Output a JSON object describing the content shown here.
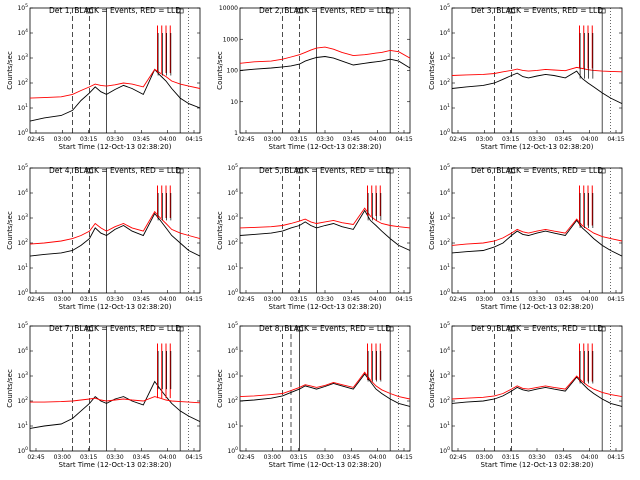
{
  "x_ticks": [
    "02:45",
    "03:00",
    "03:15",
    "03:30",
    "03:45",
    "04:00",
    "04:15"
  ],
  "x_range_min": [
    40,
    100
  ],
  "y_label": "Counts/sec",
  "x_label": "Start Time (12-Oct-13 02:38:20)",
  "colors": {
    "events": "#000000",
    "lld": "#ff0000",
    "axes": "#000000"
  },
  "chart_data": [
    {
      "type": "line",
      "title": "Det 1, BLACK = Events, RED = LLD",
      "yscale": "log",
      "ylim": [
        1,
        100000
      ],
      "yticks": [
        "10^0",
        "10^1",
        "10^2",
        "10^3",
        "10^4",
        "10^5"
      ],
      "markers": {
        "dashed": [
          55,
          61
        ],
        "solid": [
          67,
          93
        ],
        "dotted": [
          96
        ]
      },
      "spikes": [
        85,
        86.5,
        88,
        89.5
      ],
      "series": [
        {
          "name": "Events",
          "color": "#000000",
          "x": [
            40,
            45,
            51,
            55,
            58,
            61,
            63,
            65,
            67,
            70,
            73,
            76,
            80,
            84,
            86,
            88,
            90,
            93,
            96,
            100
          ],
          "values": [
            3,
            4,
            5,
            8,
            20,
            40,
            70,
            45,
            35,
            55,
            80,
            60,
            35,
            350,
            200,
            120,
            60,
            25,
            15,
            10
          ]
        },
        {
          "name": "LLD",
          "color": "#ff0000",
          "x": [
            40,
            45,
            51,
            55,
            58,
            61,
            63,
            65,
            67,
            70,
            73,
            76,
            80,
            84,
            86,
            88,
            90,
            93,
            96,
            100
          ],
          "values": [
            25,
            26,
            28,
            35,
            50,
            70,
            90,
            80,
            75,
            85,
            100,
            90,
            70,
            350,
            250,
            180,
            120,
            90,
            75,
            60
          ]
        }
      ]
    },
    {
      "type": "line",
      "title": "Det 2, BLACK = Events, RED = LLD",
      "yscale": "log",
      "ylim": [
        1,
        10000
      ],
      "yticks": [
        "1",
        "10",
        "100",
        "1000",
        "10000"
      ],
      "markers": {
        "dashed": [
          55,
          61
        ],
        "solid": [
          67,
          93
        ],
        "dotted": [
          96
        ]
      },
      "spikes": [],
      "series": [
        {
          "name": "Events",
          "color": "#000000",
          "x": [
            40,
            45,
            51,
            55,
            58,
            61,
            63,
            65,
            67,
            70,
            73,
            76,
            80,
            84,
            86,
            88,
            90,
            93,
            96,
            100
          ],
          "values": [
            100,
            110,
            120,
            130,
            140,
            160,
            200,
            230,
            260,
            280,
            250,
            200,
            150,
            170,
            180,
            190,
            200,
            230,
            200,
            120
          ]
        },
        {
          "name": "LLD",
          "color": "#ff0000",
          "x": [
            40,
            45,
            51,
            55,
            58,
            61,
            63,
            65,
            67,
            70,
            73,
            76,
            80,
            84,
            86,
            88,
            90,
            93,
            96,
            100
          ],
          "values": [
            170,
            190,
            200,
            230,
            270,
            320,
            380,
            450,
            520,
            560,
            480,
            380,
            300,
            320,
            340,
            360,
            380,
            440,
            400,
            250
          ]
        }
      ]
    },
    {
      "type": "line",
      "title": "Det 3, BLACK = Events, RED = LLD",
      "yscale": "log",
      "ylim": [
        1,
        100000
      ],
      "yticks": [
        "10^0",
        "10^1",
        "10^2",
        "10^3",
        "10^4",
        "10^5"
      ],
      "markers": {
        "dashed": [
          55,
          61
        ],
        "solid": [
          93
        ],
        "dotted": [
          96
        ]
      },
      "spikes": [
        85,
        86.5,
        88,
        89.5
      ],
      "series": [
        {
          "name": "Events",
          "color": "#000000",
          "x": [
            40,
            45,
            51,
            55,
            58,
            61,
            63,
            65,
            67,
            70,
            73,
            76,
            80,
            84,
            86,
            88,
            90,
            93,
            96,
            100
          ],
          "values": [
            60,
            70,
            80,
            100,
            140,
            200,
            250,
            180,
            160,
            190,
            220,
            200,
            160,
            300,
            150,
            100,
            70,
            40,
            25,
            15
          ]
        },
        {
          "name": "LLD",
          "color": "#ff0000",
          "x": [
            40,
            45,
            51,
            55,
            58,
            61,
            63,
            65,
            67,
            70,
            73,
            76,
            80,
            84,
            86,
            88,
            90,
            93,
            96,
            100
          ],
          "values": [
            200,
            210,
            220,
            240,
            280,
            320,
            360,
            320,
            300,
            320,
            350,
            330,
            310,
            420,
            380,
            340,
            320,
            300,
            290,
            280
          ]
        }
      ]
    },
    {
      "type": "line",
      "title": "Det 4, BLACK = Events, RED = LLD",
      "yscale": "log",
      "ylim": [
        1,
        100000
      ],
      "yticks": [
        "10^0",
        "10^1",
        "10^2",
        "10^3",
        "10^4",
        "10^5"
      ],
      "markers": {
        "dashed": [
          55,
          61
        ],
        "solid": [
          67,
          93
        ],
        "dotted": [
          96
        ]
      },
      "spikes": [
        85,
        86.5,
        88,
        89.5
      ],
      "series": [
        {
          "name": "Events",
          "color": "#000000",
          "x": [
            40,
            45,
            51,
            55,
            58,
            61,
            63,
            65,
            67,
            70,
            73,
            76,
            80,
            84,
            86,
            88,
            90,
            93,
            96,
            100
          ],
          "values": [
            30,
            35,
            40,
            50,
            80,
            150,
            400,
            250,
            200,
            350,
            500,
            300,
            200,
            1500,
            800,
            400,
            200,
            100,
            50,
            30
          ]
        },
        {
          "name": "LLD",
          "color": "#ff0000",
          "x": [
            40,
            45,
            51,
            55,
            58,
            61,
            63,
            65,
            67,
            70,
            73,
            76,
            80,
            84,
            86,
            88,
            90,
            93,
            96,
            100
          ],
          "values": [
            90,
            100,
            120,
            150,
            200,
            300,
            600,
            400,
            300,
            450,
            600,
            400,
            300,
            1800,
            1000,
            600,
            350,
            250,
            200,
            150
          ]
        }
      ]
    },
    {
      "type": "line",
      "title": "Det 5, BLACK = Events, RED = LLD",
      "yscale": "log",
      "ylim": [
        1,
        100000
      ],
      "yticks": [
        "10^0",
        "10^1",
        "10^2",
        "10^3",
        "10^4",
        "10^5"
      ],
      "markers": {
        "dashed": [
          55,
          61
        ],
        "solid": [
          67,
          93
        ],
        "dotted": [
          96
        ]
      },
      "spikes": [
        85,
        86.5,
        88,
        89.5
      ],
      "series": [
        {
          "name": "Events",
          "color": "#000000",
          "x": [
            40,
            45,
            51,
            55,
            58,
            61,
            63,
            65,
            67,
            70,
            73,
            76,
            80,
            84,
            86,
            88,
            90,
            93,
            96,
            100
          ],
          "values": [
            200,
            220,
            250,
            300,
            400,
            500,
            700,
            500,
            400,
            500,
            600,
            450,
            350,
            2000,
            800,
            500,
            300,
            150,
            80,
            50
          ]
        },
        {
          "name": "LLD",
          "color": "#ff0000",
          "x": [
            40,
            45,
            51,
            55,
            58,
            61,
            63,
            65,
            67,
            70,
            73,
            76,
            80,
            84,
            86,
            88,
            90,
            93,
            96,
            100
          ],
          "values": [
            400,
            420,
            450,
            500,
            600,
            750,
            900,
            700,
            600,
            700,
            800,
            650,
            550,
            2500,
            1200,
            800,
            600,
            500,
            450,
            400
          ]
        }
      ]
    },
    {
      "type": "line",
      "title": "Det 6, BLACK = Events, RED = LLD",
      "yscale": "log",
      "ylim": [
        1,
        100000
      ],
      "yticks": [
        "10^0",
        "10^1",
        "10^2",
        "10^3",
        "10^4",
        "10^5"
      ],
      "markers": {
        "dashed": [
          55,
          61
        ],
        "solid": [
          93
        ],
        "dotted": [
          96
        ]
      },
      "spikes": [
        85,
        86.5,
        88,
        89.5
      ],
      "series": [
        {
          "name": "Events",
          "color": "#000000",
          "x": [
            40,
            45,
            51,
            55,
            58,
            61,
            63,
            65,
            67,
            70,
            73,
            76,
            80,
            84,
            86,
            88,
            90,
            93,
            96,
            100
          ],
          "values": [
            40,
            45,
            50,
            70,
            100,
            200,
            300,
            220,
            200,
            250,
            300,
            250,
            200,
            800,
            400,
            250,
            150,
            80,
            50,
            30
          ]
        },
        {
          "name": "LLD",
          "color": "#ff0000",
          "x": [
            40,
            45,
            51,
            55,
            58,
            61,
            63,
            65,
            67,
            70,
            73,
            76,
            80,
            84,
            86,
            88,
            90,
            93,
            96,
            100
          ],
          "values": [
            80,
            90,
            100,
            120,
            160,
            250,
            350,
            280,
            250,
            300,
            350,
            300,
            250,
            900,
            500,
            350,
            250,
            180,
            150,
            120
          ]
        }
      ]
    },
    {
      "type": "line",
      "title": "Det 7, BLACK = Events, RED = LLD",
      "yscale": "log",
      "ylim": [
        1,
        100000
      ],
      "yticks": [
        "10^0",
        "10^1",
        "10^2",
        "10^3",
        "10^4",
        "10^5"
      ],
      "markers": {
        "dashed": [
          55,
          61
        ],
        "solid": [
          67,
          93
        ],
        "dotted": [
          96
        ]
      },
      "spikes": [
        85,
        86.5,
        88,
        89.5
      ],
      "series": [
        {
          "name": "Events",
          "color": "#000000",
          "x": [
            40,
            45,
            51,
            55,
            58,
            61,
            63,
            65,
            67,
            70,
            73,
            76,
            80,
            84,
            86,
            88,
            90,
            93,
            96,
            100
          ],
          "values": [
            8,
            10,
            12,
            20,
            40,
            80,
            150,
            100,
            80,
            120,
            150,
            100,
            70,
            600,
            300,
            150,
            80,
            40,
            25,
            15
          ]
        },
        {
          "name": "LLD",
          "color": "#ff0000",
          "x": [
            40,
            45,
            51,
            55,
            58,
            61,
            63,
            65,
            67,
            70,
            73,
            76,
            80,
            84,
            86,
            88,
            90,
            93,
            96,
            100
          ],
          "values": [
            90,
            90,
            95,
            100,
            110,
            120,
            130,
            110,
            100,
            110,
            120,
            110,
            100,
            150,
            130,
            110,
            100,
            95,
            90,
            85
          ]
        }
      ]
    },
    {
      "type": "line",
      "title": "Det 8, BLACK = Events, RED = LLD",
      "yscale": "log",
      "ylim": [
        1,
        100000
      ],
      "yticks": [
        "10^0",
        "10^1",
        "10^2",
        "10^3",
        "10^4",
        "10^5"
      ],
      "markers": {
        "dashed": [
          55,
          58
        ],
        "solid": [
          61,
          93
        ],
        "dotted": [
          96
        ]
      },
      "spikes": [
        85,
        86.5,
        88,
        89.5
      ],
      "series": [
        {
          "name": "Events",
          "color": "#000000",
          "x": [
            40,
            45,
            51,
            55,
            58,
            61,
            63,
            65,
            67,
            70,
            73,
            76,
            80,
            84,
            86,
            88,
            90,
            93,
            96,
            100
          ],
          "values": [
            100,
            110,
            130,
            160,
            220,
            300,
            400,
            350,
            300,
            380,
            500,
            400,
            300,
            1200,
            600,
            300,
            200,
            120,
            80,
            60
          ]
        },
        {
          "name": "LLD",
          "color": "#ff0000",
          "x": [
            40,
            45,
            51,
            55,
            58,
            61,
            63,
            65,
            67,
            70,
            73,
            76,
            80,
            84,
            86,
            88,
            90,
            93,
            96,
            100
          ],
          "values": [
            150,
            160,
            180,
            200,
            260,
            350,
            450,
            400,
            350,
            420,
            550,
            450,
            350,
            1400,
            700,
            400,
            280,
            200,
            150,
            120
          ]
        }
      ]
    },
    {
      "type": "line",
      "title": "Det 9, BLACK = Events, RED = LLD",
      "yscale": "log",
      "ylim": [
        1,
        100000
      ],
      "yticks": [
        "10^0",
        "10^1",
        "10^2",
        "10^3",
        "10^4",
        "10^5"
      ],
      "markers": {
        "dashed": [
          55,
          61
        ],
        "solid": [
          93
        ],
        "dotted": [
          96
        ]
      },
      "spikes": [
        85,
        86.5,
        88,
        89.5
      ],
      "series": [
        {
          "name": "Events",
          "color": "#000000",
          "x": [
            40,
            45,
            51,
            55,
            58,
            61,
            63,
            65,
            67,
            70,
            73,
            76,
            80,
            84,
            86,
            88,
            90,
            93,
            96,
            100
          ],
          "values": [
            80,
            90,
            100,
            120,
            160,
            250,
            350,
            280,
            250,
            300,
            350,
            300,
            250,
            900,
            500,
            300,
            200,
            120,
            80,
            60
          ]
        },
        {
          "name": "LLD",
          "color": "#ff0000",
          "x": [
            40,
            45,
            51,
            55,
            58,
            61,
            63,
            65,
            67,
            70,
            73,
            76,
            80,
            84,
            86,
            88,
            90,
            93,
            96,
            100
          ],
          "values": [
            120,
            130,
            140,
            160,
            200,
            300,
            400,
            320,
            300,
            350,
            400,
            350,
            300,
            1000,
            600,
            400,
            300,
            220,
            180,
            150
          ]
        }
      ]
    }
  ]
}
